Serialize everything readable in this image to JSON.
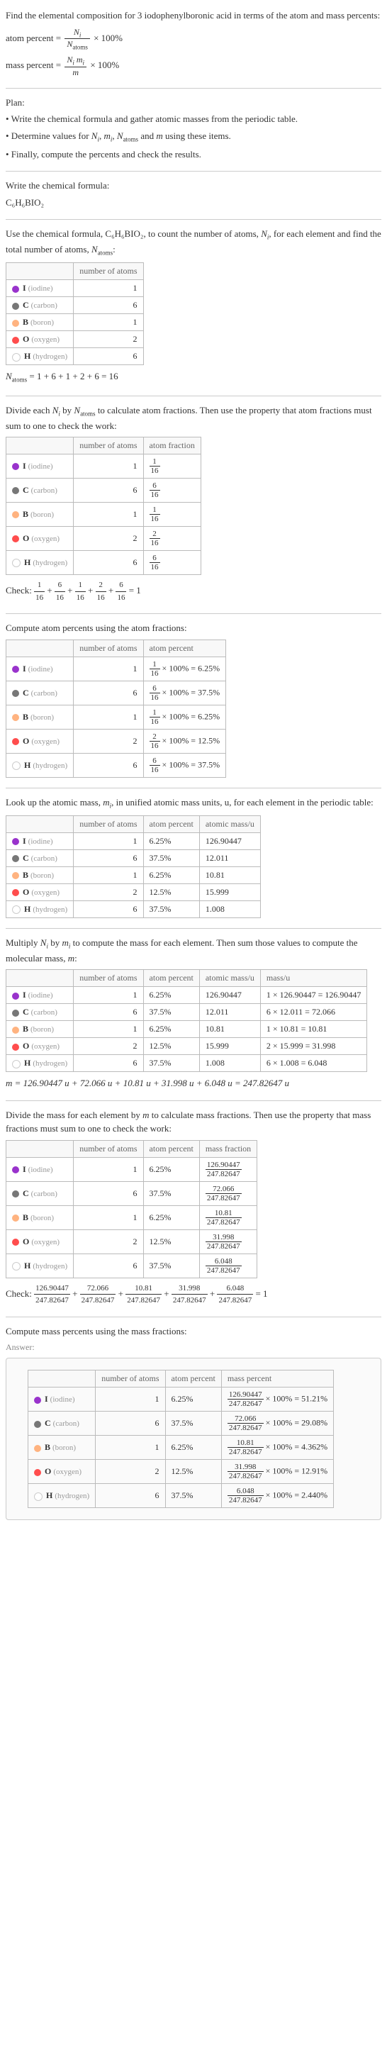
{
  "intro": {
    "line1": "Find the elemental composition for 3 iodophenylboronic acid in terms of the atom and mass percents:",
    "atom_percent_lhs": "atom percent =",
    "atom_percent_num": "N_i",
    "atom_percent_den": "N_atoms",
    "times100": "× 100%",
    "mass_percent_lhs": "mass percent =",
    "mass_percent_num": "N_i m_i",
    "mass_percent_den": "m"
  },
  "plan": {
    "title": "Plan:",
    "b1": "• Write the chemical formula and gather atomic masses from the periodic table.",
    "b2_a": "• Determine values for ",
    "b2_b": " using these items.",
    "b3": "• Finally, compute the percents and check the results."
  },
  "symbols": {
    "Ni": "N_i",
    "mi": "m_i",
    "Natoms": "N_atoms",
    "m": "m",
    "and": " and "
  },
  "formula": {
    "t1": "Write the chemical formula:",
    "text": "C₆H₆BIO₂"
  },
  "count": {
    "t1_a": "Use the chemical formula, C₆H₆BIO₂, to count the number of atoms, ",
    "t1_b": ", for each element and find the total number of atoms, ",
    "t1_c": ":",
    "h1": "number of atoms",
    "sum": "N_atoms = 1 + 6 + 1 + 2 + 6 = 16"
  },
  "elements": [
    {
      "sym": "I",
      "name": "iodine",
      "color": "#9933cc",
      "n": 1,
      "af_num": "1",
      "af_den": "16",
      "ap": "6.25%",
      "mass": "126.90447",
      "massCalc": "1 × 126.90447 = 126.90447",
      "mf_num": "126.90447",
      "mf_den": "247.82647",
      "mp": "126.90447/247.82647 × 100% = 51.21%"
    },
    {
      "sym": "C",
      "name": "carbon",
      "color": "#777777",
      "n": 6,
      "af_num": "6",
      "af_den": "16",
      "ap": "37.5%",
      "mass": "12.011",
      "massCalc": "6 × 12.011 = 72.066",
      "mf_num": "72.066",
      "mf_den": "247.82647",
      "mp": "72.066/247.82647 × 100% = 29.08%"
    },
    {
      "sym": "B",
      "name": "boron",
      "color": "#ffb380",
      "n": 1,
      "af_num": "1",
      "af_den": "16",
      "ap": "6.25%",
      "mass": "10.81",
      "massCalc": "1 × 10.81 = 10.81",
      "mf_num": "10.81",
      "mf_den": "247.82647",
      "mp": "10.81/247.82647 × 100% = 4.362%"
    },
    {
      "sym": "O",
      "name": "oxygen",
      "color": "#ff4d4d",
      "n": 2,
      "af_num": "2",
      "af_den": "16",
      "ap": "12.5%",
      "mass": "15.999",
      "massCalc": "2 × 15.999 = 31.998",
      "mf_num": "31.998",
      "mf_den": "247.82647",
      "mp": "31.998/247.82647 × 100% = 12.91%"
    },
    {
      "sym": "H",
      "name": "hydrogen",
      "color": "#ffffff",
      "n": 6,
      "af_num": "6",
      "af_den": "16",
      "ap": "37.5%",
      "mass": "1.008",
      "massCalc": "6 × 1.008 = 6.048",
      "mf_num": "6.048",
      "mf_den": "247.82647",
      "mp": "6.048/247.82647 × 100% = 2.440%"
    }
  ],
  "atomfrac": {
    "t1_a": "Divide each ",
    "t1_b": " by ",
    "t1_c": " to calculate atom fractions. Then use the property that atom fractions must sum to one to check the work:",
    "h1": "number of atoms",
    "h2": "atom fraction",
    "check_lbl": "Check: ",
    "check_eq": " = 1"
  },
  "atompct": {
    "t1": "Compute atom percents using the atom fractions:",
    "h1": "number of atoms",
    "h2": "atom percent",
    "suffix": " × 100% = "
  },
  "atomicmass": {
    "t1_a": "Look up the atomic mass, ",
    "t1_b": ", in unified atomic mass units, u, for each element in the periodic table:",
    "h1": "number of atoms",
    "h2": "atom percent",
    "h3": "atomic mass/u"
  },
  "molmass": {
    "t1_a": "Multiply ",
    "t1_b": " by ",
    "t1_c": " to compute the mass for each element. Then sum those values to compute the molecular mass, ",
    "t1_d": ":",
    "h1": "number of atoms",
    "h2": "atom percent",
    "h3": "atomic mass/u",
    "h4": "mass/u",
    "sum": "m = 126.90447 u + 72.066 u + 10.81 u + 31.998 u + 6.048 u = 247.82647 u"
  },
  "massfrac": {
    "t1_a": "Divide the mass for each element by ",
    "t1_b": " to calculate mass fractions. Then use the property that mass fractions must sum to one to check the work:",
    "h1": "number of atoms",
    "h2": "atom percent",
    "h3": "mass fraction",
    "check_lbl": "Check: ",
    "check_eq": " = 1"
  },
  "masspct": {
    "t1": "Compute mass percents using the mass fractions:",
    "h1": "number of atoms",
    "h2": "atom percent",
    "h3": "mass percent"
  },
  "answer": "Answer:"
}
